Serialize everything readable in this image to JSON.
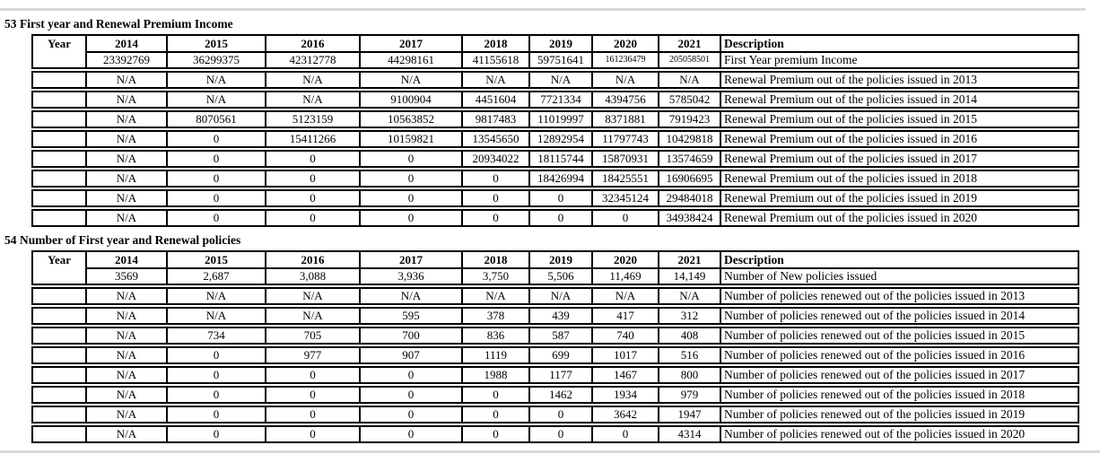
{
  "document": {
    "sections": [
      {
        "number": "53",
        "title": "First year and Renewal Premium Income",
        "year_header": "Year",
        "description_header": "Description",
        "year_columns": [
          "2014",
          "2015",
          "2016",
          "2017",
          "2018",
          "2019",
          "2020",
          "2021"
        ],
        "rows": [
          {
            "values": [
              "23392769",
              "36299375",
              "42312778",
              "44298161",
              "41155618",
              "59751641",
              "161236479",
              "205058501"
            ],
            "description": "First Year premium Income"
          },
          {
            "values": [
              "N/A",
              "N/A",
              "N/A",
              "N/A",
              "N/A",
              "N/A",
              "N/A",
              "N/A"
            ],
            "description": "Renewal Premium out of the policies issued in 2013"
          },
          {
            "values": [
              "N/A",
              "N/A",
              "N/A",
              "9100904",
              "4451604",
              "7721334",
              "4394756",
              "5785042"
            ],
            "description": "Renewal Premium out of the policies issued in 2014"
          },
          {
            "values": [
              "N/A",
              "8070561",
              "5123159",
              "10563852",
              "9817483",
              "11019997",
              "8371881",
              "7919423"
            ],
            "description": "Renewal Premium out of the policies issued in 2015"
          },
          {
            "values": [
              "N/A",
              "0",
              "15411266",
              "10159821",
              "13545650",
              "12892954",
              "11797743",
              "10429818"
            ],
            "description": "Renewal Premium out of the policies issued in 2016"
          },
          {
            "values": [
              "N/A",
              "0",
              "0",
              "0",
              "20934022",
              "18115744",
              "15870931",
              "13574659"
            ],
            "description": "Renewal Premium out of the policies issued in 2017"
          },
          {
            "values": [
              "N/A",
              "0",
              "0",
              "0",
              "0",
              "18426994",
              "18425551",
              "16906695"
            ],
            "description": "Renewal Premium out of the policies issued in 2018"
          },
          {
            "values": [
              "N/A",
              "0",
              "0",
              "0",
              "0",
              "0",
              "32345124",
              "29484018"
            ],
            "description": "Renewal Premium out of the policies issued in 2019"
          },
          {
            "values": [
              "N/A",
              "0",
              "0",
              "0",
              "0",
              "0",
              "0",
              "34938424"
            ],
            "description": "Renewal Premium out of the policies issued in 2020"
          }
        ]
      },
      {
        "number": "54",
        "title": "Number of First year and Renewal policies",
        "year_header": "Year",
        "description_header": "Description",
        "year_columns": [
          "2014",
          "2015",
          "2016",
          "2017",
          "2018",
          "2019",
          "2020",
          "2021"
        ],
        "rows": [
          {
            "values": [
              "3569",
              "2,687",
              "3,088",
              "3,936",
              "3,750",
              "5,506",
              "11,469",
              "14,149"
            ],
            "description": "Number of New policies issued"
          },
          {
            "values": [
              "N/A",
              "N/A",
              "N/A",
              "N/A",
              "N/A",
              "N/A",
              "N/A",
              "N/A"
            ],
            "description": "Number of policies renewed out of the policies issued in 2013"
          },
          {
            "values": [
              "N/A",
              "N/A",
              "N/A",
              "595",
              "378",
              "439",
              "417",
              "312"
            ],
            "description": "Number of policies renewed out of the policies issued in 2014"
          },
          {
            "values": [
              "N/A",
              "734",
              "705",
              "700",
              "836",
              "587",
              "740",
              "408"
            ],
            "description": "Number of policies renewed out of the policies issued in 2015"
          },
          {
            "values": [
              "N/A",
              "0",
              "977",
              "907",
              "1119",
              "699",
              "1017",
              "516"
            ],
            "description": "Number of policies renewed out of the policies issued in 2016"
          },
          {
            "values": [
              "N/A",
              "0",
              "0",
              "0",
              "1988",
              "1177",
              "1467",
              "800"
            ],
            "description": "Number of policies renewed out of the policies issued in 2017"
          },
          {
            "values": [
              "N/A",
              "0",
              "0",
              "0",
              "0",
              "1462",
              "1934",
              "979"
            ],
            "description": "Number of policies renewed out of the policies issued in 2018"
          },
          {
            "values": [
              "N/A",
              "0",
              "0",
              "0",
              "0",
              "0",
              "3642",
              "1947"
            ],
            "description": "Number of policies renewed out of the policies issued in 2019"
          },
          {
            "values": [
              "N/A",
              "0",
              "0",
              "0",
              "0",
              "0",
              "0",
              "4314"
            ],
            "description": "Number of policies renewed out of the policies issued in 2020"
          }
        ]
      }
    ]
  },
  "colors": {
    "border": "#000000",
    "text": "#000000",
    "divider_rule": "#d9d9d9",
    "background": "#ffffff"
  }
}
